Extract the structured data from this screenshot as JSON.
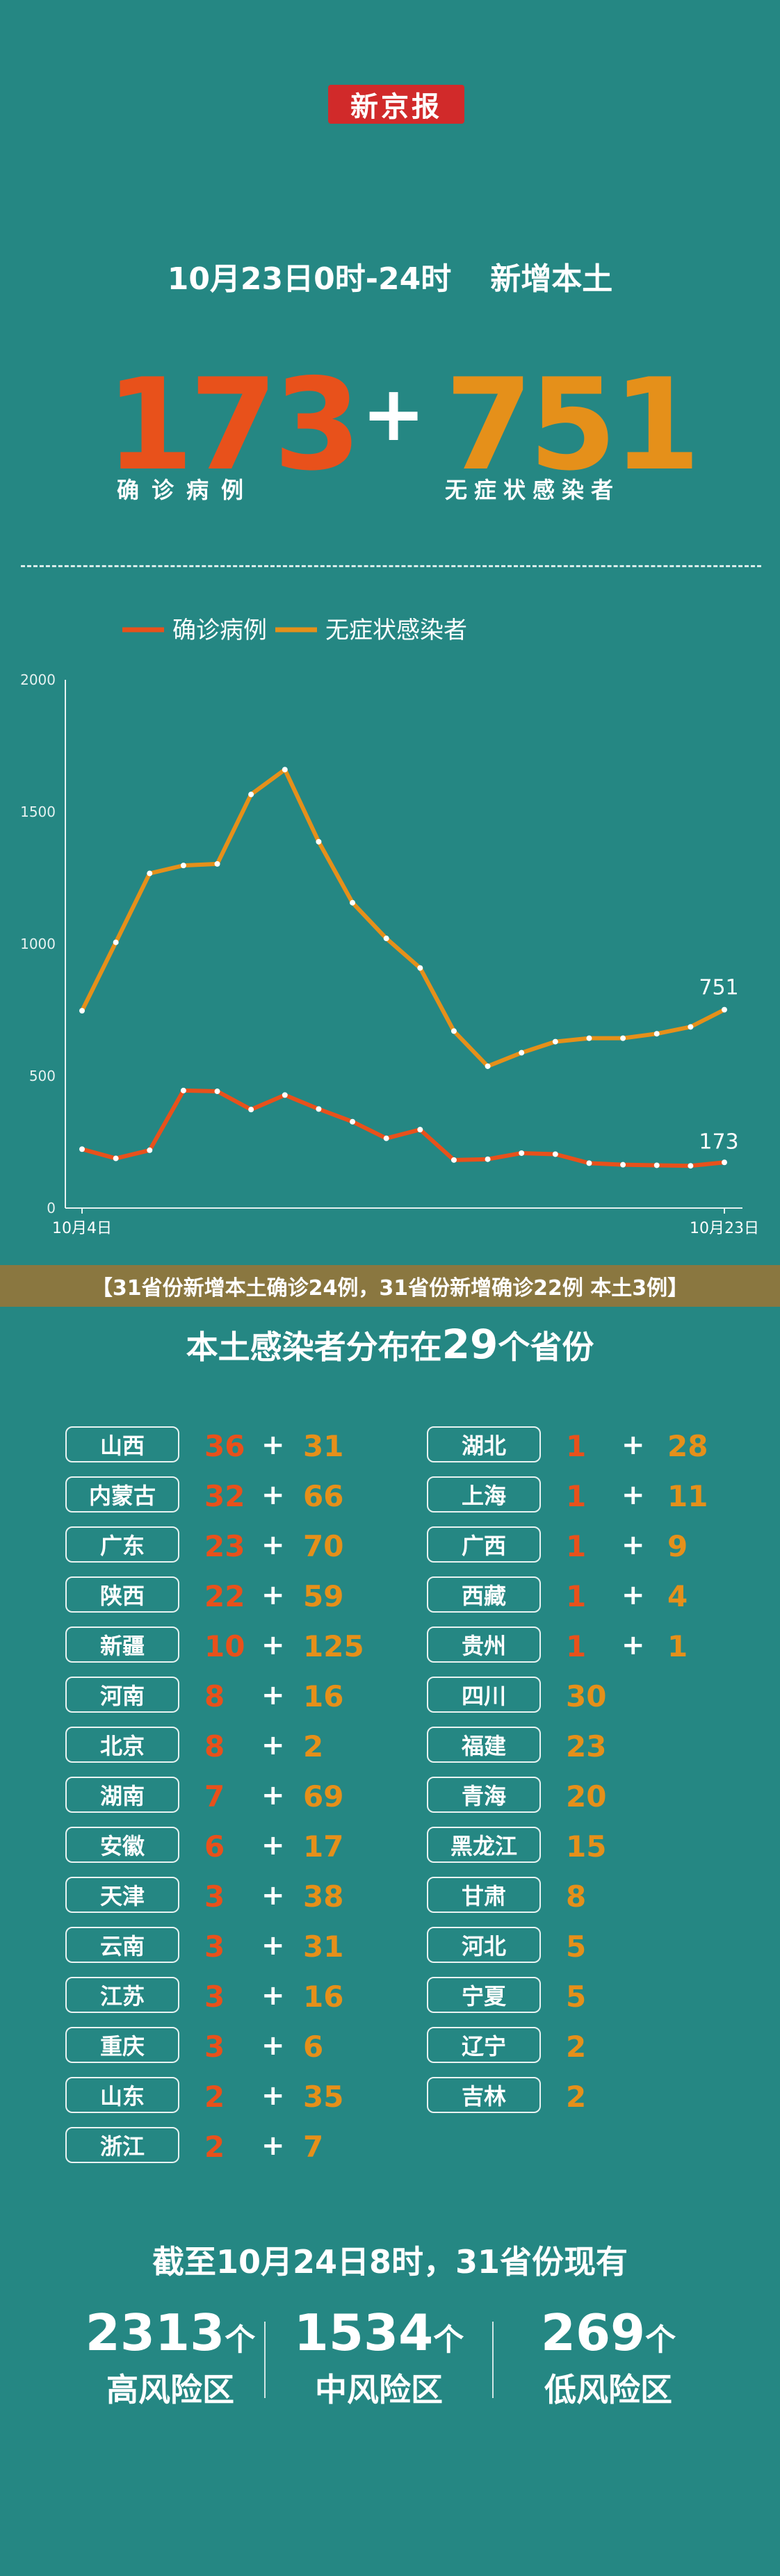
{
  "header": {
    "logo_text": "新京报",
    "date_range": "10月23日0时-24时",
    "scope": "新增本土"
  },
  "totals": {
    "confirmed": "173",
    "confirmed_label": "确诊病例",
    "plus": "+",
    "asymptomatic": "751",
    "asymptomatic_label": "无症状感染者"
  },
  "colors": {
    "background": "#258783",
    "confirmed": "#e8511b",
    "asymptomatic": "#e5901a",
    "banner": "#8a7740",
    "logo": "#d12a2a"
  },
  "chart_data": {
    "type": "line",
    "x": [
      "10月4日",
      "10月5日",
      "10月6日",
      "10月7日",
      "10月8日",
      "10月9日",
      "10月10日",
      "10月11日",
      "10月12日",
      "10月13日",
      "10月14日",
      "10月15日",
      "10月16日",
      "10月17日",
      "10月18日",
      "10月19日",
      "10月20日",
      "10月21日",
      "10月22日",
      "10月23日"
    ],
    "x_tick_labels": [
      "10月4日",
      "10月23日"
    ],
    "ylim": [
      0,
      2000
    ],
    "y_ticks": [
      "0",
      "500",
      "1000",
      "1500",
      "2000"
    ],
    "legend": "top-left",
    "series": [
      {
        "name": "确诊病例",
        "color": "#e8511b",
        "values": [
          223,
          188,
          219,
          445,
          442,
          373,
          428,
          375,
          327,
          264,
          297,
          182,
          185,
          208,
          204,
          170,
          164,
          162,
          160,
          173
        ]
      },
      {
        "name": "无症状感染者",
        "color": "#e5901a",
        "values": [
          747,
          1006,
          1267,
          1297,
          1303,
          1566,
          1660,
          1387,
          1156,
          1021,
          909,
          670,
          537,
          588,
          630,
          643,
          643,
          660,
          686,
          751
        ]
      }
    ],
    "end_labels": [
      "173",
      "751"
    ]
  },
  "banner": {
    "text": "【31省份新增本土确诊24例，31省份新增确诊22例 本土3例】"
  },
  "distribution": {
    "title_prefix": "本土感染者分布在",
    "count": "29",
    "title_suffix": "个省份",
    "left": [
      {
        "name": "山西",
        "confirmed": "36",
        "asymptomatic": "31"
      },
      {
        "name": "内蒙古",
        "confirmed": "32",
        "asymptomatic": "66"
      },
      {
        "name": "广东",
        "confirmed": "23",
        "asymptomatic": "70"
      },
      {
        "name": "陕西",
        "confirmed": "22",
        "asymptomatic": "59"
      },
      {
        "name": "新疆",
        "confirmed": "10",
        "asymptomatic": "125"
      },
      {
        "name": "河南",
        "confirmed": "8",
        "asymptomatic": "16"
      },
      {
        "name": "北京",
        "confirmed": "8",
        "asymptomatic": "2"
      },
      {
        "name": "湖南",
        "confirmed": "7",
        "asymptomatic": "69"
      },
      {
        "name": "安徽",
        "confirmed": "6",
        "asymptomatic": "17"
      },
      {
        "name": "天津",
        "confirmed": "3",
        "asymptomatic": "38"
      },
      {
        "name": "云南",
        "confirmed": "3",
        "asymptomatic": "31"
      },
      {
        "name": "江苏",
        "confirmed": "3",
        "asymptomatic": "16"
      },
      {
        "name": "重庆",
        "confirmed": "3",
        "asymptomatic": "6"
      },
      {
        "name": "山东",
        "confirmed": "2",
        "asymptomatic": "35"
      },
      {
        "name": "浙江",
        "confirmed": "2",
        "asymptomatic": "7"
      }
    ],
    "right_both": [
      {
        "name": "湖北",
        "confirmed": "1",
        "asymptomatic": "28"
      },
      {
        "name": "上海",
        "confirmed": "1",
        "asymptomatic": "11"
      },
      {
        "name": "广西",
        "confirmed": "1",
        "asymptomatic": "9"
      },
      {
        "name": "西藏",
        "confirmed": "1",
        "asymptomatic": "4"
      },
      {
        "name": "贵州",
        "confirmed": "1",
        "asymptomatic": "1"
      }
    ],
    "right_asym_only": [
      {
        "name": "四川",
        "asymptomatic": "30"
      },
      {
        "name": "福建",
        "asymptomatic": "23"
      },
      {
        "name": "青海",
        "asymptomatic": "20"
      },
      {
        "name": "黑龙江",
        "asymptomatic": "15"
      },
      {
        "name": "甘肃",
        "asymptomatic": "8"
      },
      {
        "name": "河北",
        "asymptomatic": "5"
      },
      {
        "name": "宁夏",
        "asymptomatic": "5"
      },
      {
        "name": "辽宁",
        "asymptomatic": "2"
      },
      {
        "name": "吉林",
        "asymptomatic": "2"
      }
    ]
  },
  "risk": {
    "title": "截至10月24日8时，31省份现有",
    "unit": "个",
    "areas": [
      {
        "count": "2313",
        "label": "高风险区"
      },
      {
        "count": "1534",
        "label": "中风险区"
      },
      {
        "count": "269",
        "label": "低风险区"
      }
    ]
  }
}
